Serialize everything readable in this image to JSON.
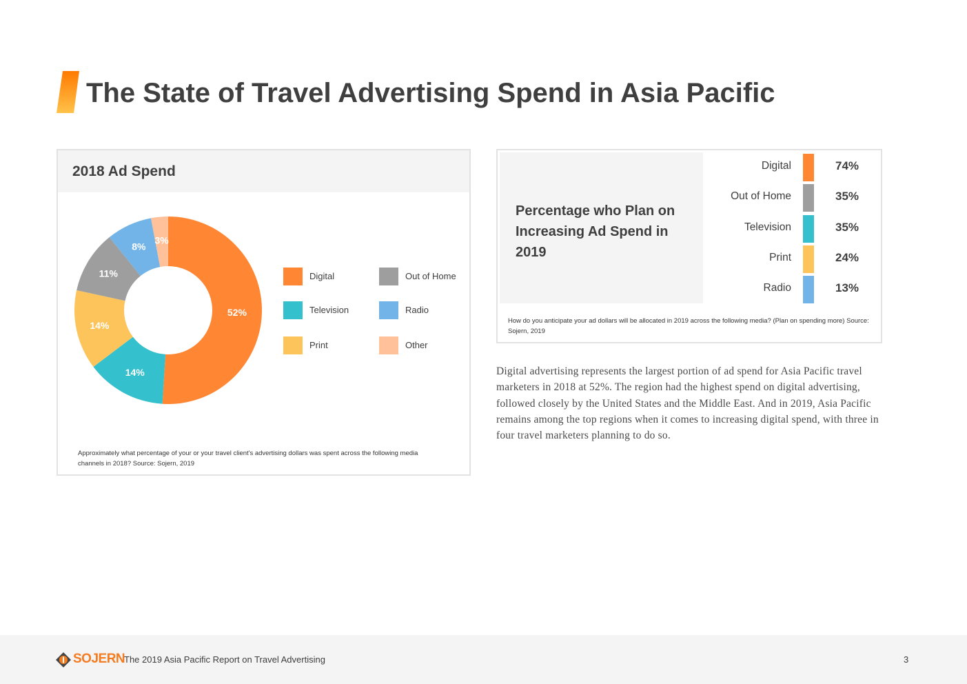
{
  "page": {
    "title": "The State of Travel Advertising Spend in Asia Pacific",
    "body_text": "Digital advertising represents the largest portion of ad spend for Asia Pacific travel marketers in 2018 at 52%. The region had the highest spend on digital advertising, followed closely by the United States and the Middle East. And in 2019, Asia Pacific remains among the top regions when it comes to increasing digital spend, with three in four travel marketers planning to do so."
  },
  "ad_spend_card": {
    "title": "2018 Ad Spend",
    "note": "Approximately what percentage of your or your travel client's advertising dollars was spent across the following media channels in 2018? Source: Sojern, 2019"
  },
  "plan_card": {
    "heading": "Percentage who Plan on Increasing Ad Spend in 2019",
    "note": "How do you anticipate your ad dollars will be allocated in 2019 across the following media? (Plan on spending more) Source: Sojern, 2019"
  },
  "footer": {
    "brand": "SOJERN",
    "report": "The 2019 Asia Pacific Report on Travel Advertising",
    "page_number": "3"
  },
  "colors": {
    "digital": "#ff8633",
    "out_of_home": "#9e9e9e",
    "television": "#35c0cd",
    "print": "#fcc45a",
    "radio": "#72b4e8",
    "other": "#ffc19a",
    "brand": "#f47b20"
  },
  "chart_data": [
    {
      "type": "pie",
      "title": "2018 Ad Spend",
      "donut": true,
      "categories": [
        "Digital",
        "Television",
        "Print",
        "Out of Home",
        "Radio",
        "Other"
      ],
      "values": [
        52,
        14,
        14,
        11,
        8,
        3
      ],
      "labels": [
        "52%",
        "14%",
        "14%",
        "11%",
        "8%",
        "3%"
      ],
      "colors": [
        "#ff8633",
        "#35c0cd",
        "#fcc45a",
        "#9e9e9e",
        "#72b4e8",
        "#ffc19a"
      ],
      "legend": [
        "Digital",
        "Out of Home",
        "Television",
        "Radio",
        "Print",
        "Other"
      ],
      "legend_colors": [
        "#ff8633",
        "#9e9e9e",
        "#35c0cd",
        "#72b4e8",
        "#fcc45a",
        "#ffc19a"
      ],
      "legend_placement": "right"
    },
    {
      "type": "table",
      "title": "Percentage who Plan on Increasing Ad Spend in 2019",
      "categories": [
        "Digital",
        "Out of Home",
        "Television",
        "Print",
        "Radio"
      ],
      "values": [
        74,
        35,
        35,
        24,
        13
      ],
      "labels": [
        "74%",
        "35%",
        "35%",
        "24%",
        "13%"
      ],
      "colors": [
        "#ff8633",
        "#9e9e9e",
        "#35c0cd",
        "#fcc45a",
        "#72b4e8"
      ]
    }
  ]
}
